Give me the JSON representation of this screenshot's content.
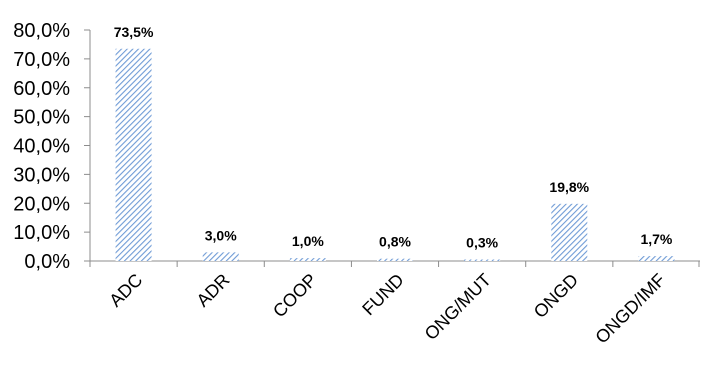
{
  "chart_data": {
    "type": "bar",
    "categories": [
      "ADC",
      "ADR",
      "COOP",
      "FUND",
      "ONG/MUT",
      "ONGD",
      "ONGD/IMF"
    ],
    "values": [
      73.5,
      3.0,
      1.0,
      0.8,
      0.3,
      19.8,
      1.7
    ],
    "data_labels": [
      "73,5%",
      "3,0%",
      "1,0%",
      "0,8%",
      "0,3%",
      "19,8%",
      "1,7%"
    ],
    "yticks": [
      "0,0%",
      "10,0%",
      "20,0%",
      "30,0%",
      "40,0%",
      "50,0%",
      "60,0%",
      "70,0%",
      "80,0%"
    ],
    "ylim": [
      0,
      80
    ],
    "grid": false,
    "legend": "none",
    "bar_fill": "hatched",
    "colors": {
      "bar": "#6f9bd6",
      "bar_background": "#ffffff",
      "axis": "#8c8c8c",
      "text": "#000000"
    }
  }
}
